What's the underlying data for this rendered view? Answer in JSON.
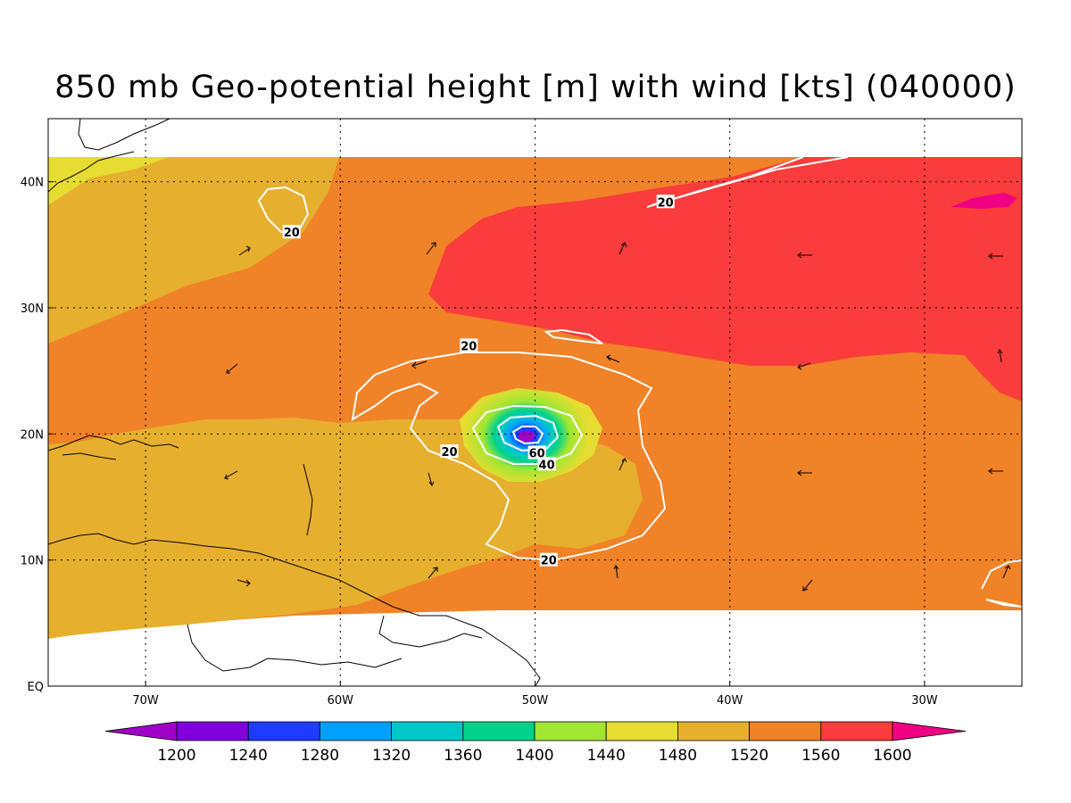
{
  "title": "850 mb Geo-potential height [m] with wind [kts] (040000)",
  "map": {
    "lon_range": [
      -75,
      -25
    ],
    "lat_range": [
      0,
      45
    ],
    "x_ticks": [
      {
        "lon": -70,
        "label": "70W"
      },
      {
        "lon": -60,
        "label": "60W"
      },
      {
        "lon": -50,
        "label": "50W"
      },
      {
        "lon": -40,
        "label": "40W"
      },
      {
        "lon": -30,
        "label": "30W"
      }
    ],
    "y_ticks": [
      {
        "lat": 0,
        "label": "EQ"
      },
      {
        "lat": 10,
        "label": "10N"
      },
      {
        "lat": 20,
        "label": "20N"
      },
      {
        "lat": 30,
        "label": "30N"
      },
      {
        "lat": 40,
        "label": "40N"
      }
    ],
    "gridlines": true,
    "field_colors": {
      "c1400": "#a0e632",
      "c1440": "#e6dc32",
      "c1480": "#e6af2d",
      "c1520": "#f08228",
      "c1560": "#fa3c3c",
      "c1600": "#f00082",
      "missing": "#ffffff"
    },
    "contour_color": "#ffffff",
    "contour_labels": [
      {
        "lon": -62.5,
        "lat": 36.0,
        "text": "20"
      },
      {
        "lon": -43.3,
        "lat": 38.4,
        "text": "20"
      },
      {
        "lon": -53.4,
        "lat": 27.0,
        "text": "20"
      },
      {
        "lon": -54.4,
        "lat": 18.6,
        "text": "20"
      },
      {
        "lon": -49.3,
        "lat": 10.0,
        "text": "20"
      },
      {
        "lon": -49.4,
        "lat": 17.6,
        "text": "40"
      },
      {
        "lon": -49.9,
        "lat": 18.5,
        "text": "60"
      }
    ]
  },
  "colorbar": {
    "levels": [
      "1200",
      "1240",
      "1280",
      "1320",
      "1360",
      "1400",
      "1440",
      "1480",
      "1520",
      "1560",
      "1600"
    ],
    "colors": [
      "#a000c8",
      "#8200dc",
      "#1e3cff",
      "#00a0ff",
      "#00c8c8",
      "#00d28c",
      "#a0e632",
      "#e6dc32",
      "#e6af2d",
      "#f08228",
      "#fa3c3c",
      "#f00082"
    ]
  }
}
